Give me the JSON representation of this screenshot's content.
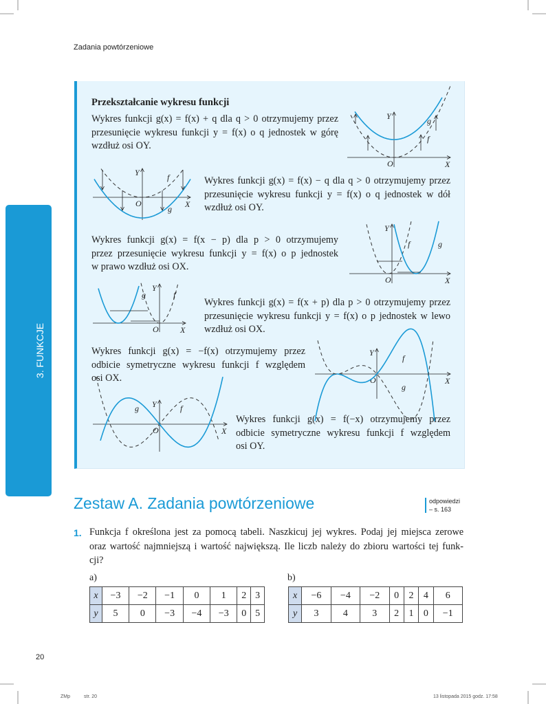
{
  "header": {
    "running_title": "Zadania powtórzeniowe"
  },
  "side_tab": {
    "label": "3. FUNKCJE",
    "color": "#1a9ad6"
  },
  "box": {
    "title": "Przekształcanie wykresu funkcji",
    "paragraphs": [
      {
        "lines": [
          "Wykres funkcji g(x) = f(x) + q dla q > 0 otrzymujemy przez",
          "przesunięcie wykresu funkcji y = f(x) o q jednostek w górę",
          "wzdłuż osi OY."
        ]
      },
      {
        "lines": [
          "Wykres funkcji g(x) = f(x) − q dla q > 0 otrzymujemy przez",
          "przesunięcie wykresu funkcji y = f(x) o q jednostek w dół",
          "wzdłuż osi OY."
        ]
      },
      {
        "lines": [
          "Wykres funkcji g(x) = f(x − p) dla p > 0 otrzymujemy",
          "przez przesunięcie wykresu funkcji y = f(x) o p jednostek",
          "w prawo wzdłuż osi OX."
        ]
      },
      {
        "lines": [
          "Wykres funkcji g(x) = f(x + p) dla p > 0 otrzymujemy przez",
          "przesunięcie wykresu funkcji y = f(x) o p jednostek w lewo",
          "wzdłuż osi OX."
        ]
      },
      {
        "lines": [
          "Wykres funkcji g(x) = −f(x) otrzymujemy przez",
          "odbicie symetryczne wykresu funkcji f względem",
          "osi OX."
        ]
      },
      {
        "lines": [
          "Wykres funkcji g(x) = f(−x) otrzymujemy przez",
          "odbicie symetryczne wykresu funkcji f względem",
          "osi OY."
        ]
      }
    ],
    "graph_labels": {
      "x_axis": "X",
      "y_axis": "Y",
      "origin": "O",
      "f": "f",
      "g": "g"
    }
  },
  "section": {
    "title": "Zestaw A. Zadania powtórzeniowe",
    "answers_note": "odpowiedzi",
    "answers_page": "– s. 163"
  },
  "task1": {
    "number": "1.",
    "lines": [
      "Funkcja f określona jest za pomocą tabeli. Naszkicuj jej wykres. Podaj jej miejsca zerowe",
      "oraz wartość najmniejszą i wartość największą. Ile liczb należy do zbioru wartości tej funk-",
      "cji?"
    ],
    "table_a": {
      "label": "a)",
      "x": [
        "x",
        "−3",
        "−2",
        "−1",
        "0",
        "1",
        "2",
        "3"
      ],
      "y": [
        "y",
        "5",
        "0",
        "−3",
        "−4",
        "−3",
        "0",
        "5"
      ]
    },
    "table_b": {
      "label": "b)",
      "x": [
        "x",
        "−6",
        "−4",
        "−2",
        "0",
        "2",
        "4",
        "6"
      ],
      "y": [
        "y",
        "3",
        "4",
        "3",
        "2",
        "1",
        "0",
        "−1"
      ]
    }
  },
  "footer": {
    "page_number": "20",
    "code": "ZMp",
    "page_ref": "str. 20",
    "timestamp": "13 listopada 2015 godz. 17:58"
  },
  "colors": {
    "accent": "#1a9ad6",
    "box_bg": "#e6f5fd",
    "curve_g": "#1a9ad6"
  }
}
